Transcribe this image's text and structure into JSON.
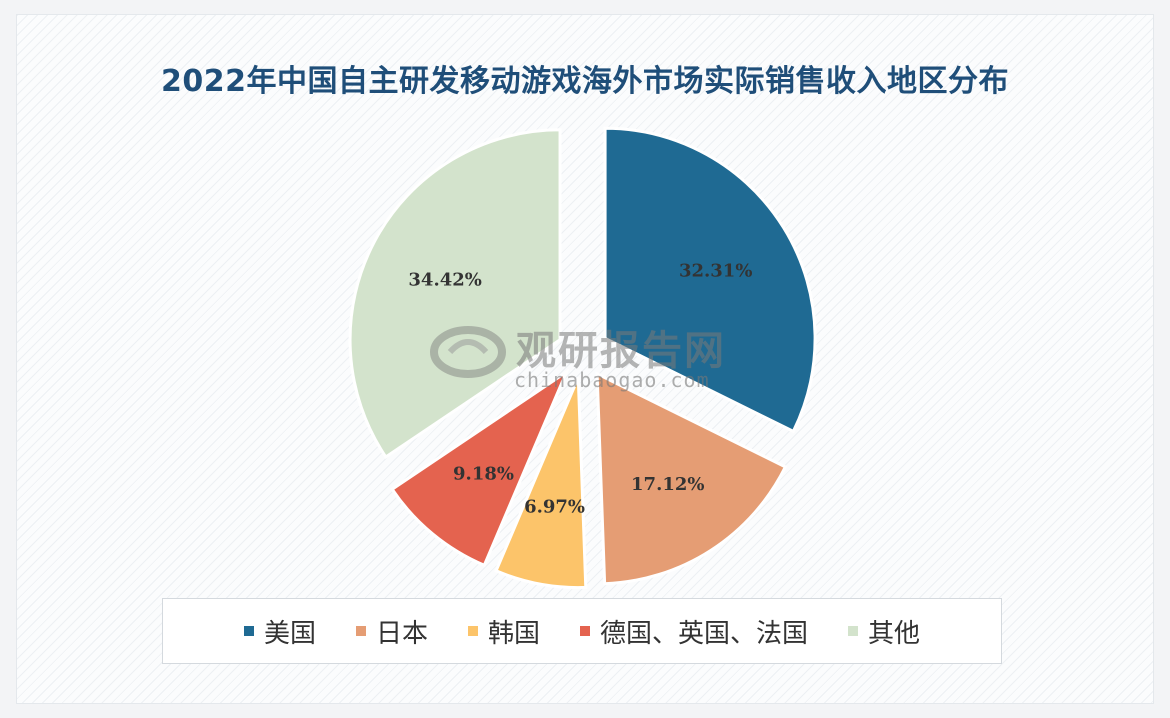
{
  "chart_data": {
    "type": "pie",
    "title": "2022年中国自主研发移动游戏海外市场实际销售收入地区分布",
    "exploded": true,
    "unit": "%",
    "slices": [
      {
        "name": "美国",
        "value": 32.31,
        "label": "32.31%",
        "color": "#1f6a93"
      },
      {
        "name": "日本",
        "value": 17.12,
        "label": "17.12%",
        "color": "#e59d74"
      },
      {
        "name": "韩国",
        "value": 6.97,
        "label": "6.97%",
        "color": "#fcc46a"
      },
      {
        "name": "德国、英国、法国",
        "value": 9.18,
        "label": "9.18%",
        "color": "#e4634f"
      },
      {
        "name": "其他",
        "value": 34.42,
        "label": "34.42%",
        "color": "#d3e3cc"
      }
    ],
    "legend_position": "bottom"
  },
  "watermark": {
    "brand": "观研报告网",
    "site": "chinabaogao.com"
  }
}
